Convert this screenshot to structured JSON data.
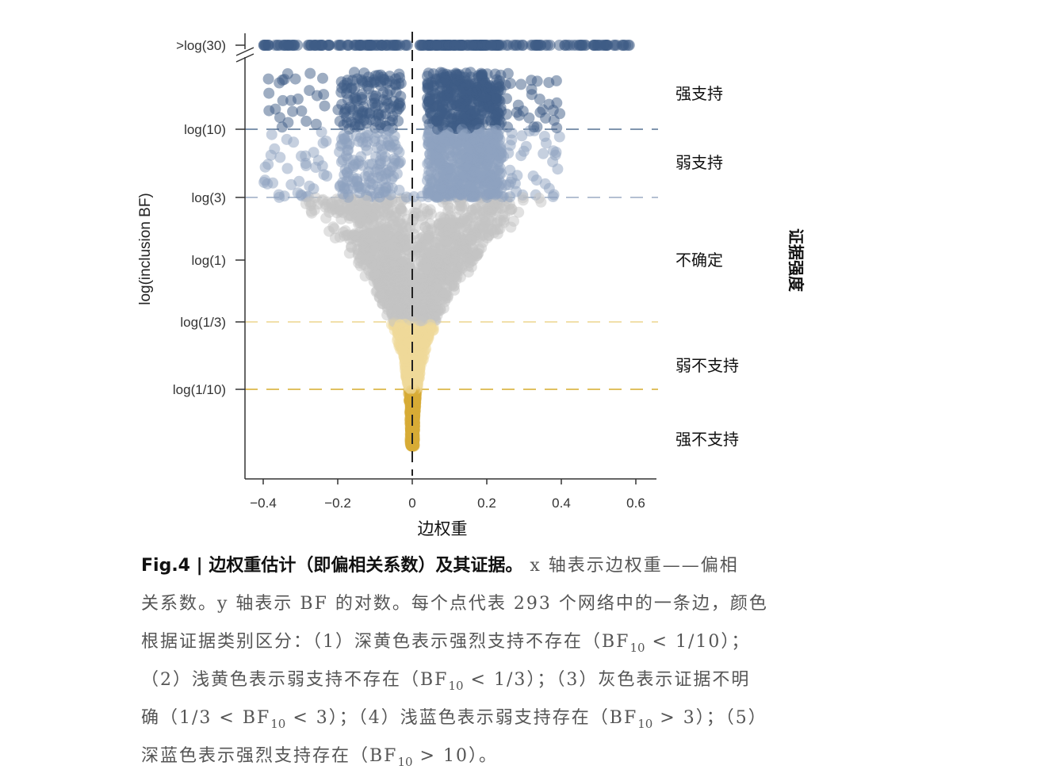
{
  "chart_data": {
    "type": "scatter",
    "xlabel": "边权重",
    "ylabel": "log(inclusion BF)",
    "xlim": [
      -0.4,
      0.6
    ],
    "x_ticks": [
      -0.4,
      -0.2,
      0,
      0.2,
      0.4,
      0.6
    ],
    "x_tick_labels": [
      "−0.4",
      "−0.2",
      "0",
      "0.2",
      "0.4",
      "0.6"
    ],
    "y_ticks": [
      {
        "label": ">log(30)",
        "value": 3.4012
      },
      {
        "label": "log(10)",
        "value": 2.3026
      },
      {
        "label": "log(3)",
        "value": 1.0986
      },
      {
        "label": "log(1)",
        "value": 0
      },
      {
        "label": "log(1/3)",
        "value": -1.0986
      },
      {
        "label": "log(1/10)",
        "value": -2.3026
      }
    ],
    "thresholds": [
      {
        "value": 2.3026,
        "color": "#6f86a2"
      },
      {
        "value": 1.0986,
        "color": "#a9b8cb"
      },
      {
        "value": -1.0986,
        "color": "#efdc9f"
      },
      {
        "value": -2.3026,
        "color": "#dcb84a"
      }
    ],
    "side_axis_label": "证据强度",
    "categories": [
      "强支持",
      "弱支持",
      "不确定",
      "弱不支持",
      "强不支持"
    ],
    "category_colors": [
      "#3d5b85",
      "#8da2bf",
      "#c4c4c4",
      "#efd999",
      "#d8ac35"
    ],
    "n_networks": 293,
    "axis_break": true,
    "grid": false
  },
  "caption": {
    "title": "Fig.4 | 边权重估计（即偏相关系数）及其证据。",
    "lines": [
      [
        {
          "t": " x 轴表示边权重——偏相"
        }
      ],
      [
        {
          "t": "关系数。y 轴表示 BF 的对数。每个点代表 293 个网络中的一条边，颜色"
        }
      ],
      [
        {
          "t": "根据证据类别区分：（1）深黄色表示强烈支持不存在（BF"
        },
        {
          "s": "10"
        },
        {
          "t": " < 1/10）；"
        }
      ],
      [
        {
          "t": "（2）浅黄色表示弱支持不存在（BF"
        },
        {
          "s": "10"
        },
        {
          "t": " < 1/3）；（3）灰色表示证据不明"
        }
      ],
      [
        {
          "t": "确（1/3 < BF"
        },
        {
          "s": "10"
        },
        {
          "t": " < 3）；（4）浅蓝色表示弱支持存在（BF"
        },
        {
          "s": "10"
        },
        {
          "t": " > 3）；（5）"
        }
      ],
      [
        {
          "t": "深蓝色表示强烈支持存在（BF"
        },
        {
          "s": "10"
        },
        {
          "t": " > 10）。"
        }
      ]
    ]
  }
}
